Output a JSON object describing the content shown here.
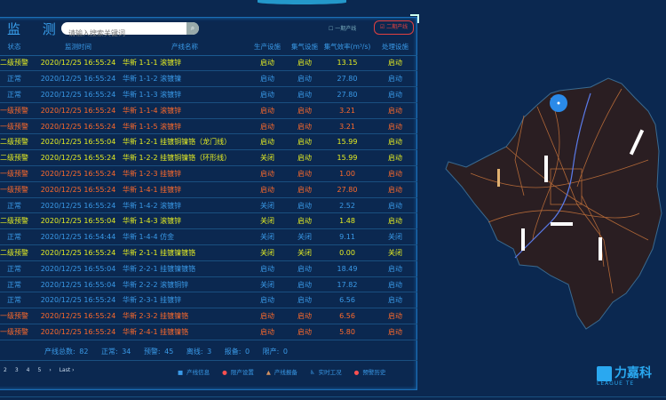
{
  "header": {
    "title": "监 测",
    "search_placeholder": "请输入搜索关键词",
    "checkbox_1": "一期产线",
    "checkbox_2": "二期产线"
  },
  "columns": [
    "状态",
    "监测时间",
    "产线名称",
    "生产设施",
    "集气设施",
    "集气效率(m³/s)",
    "处理设施"
  ],
  "rows": [
    {
      "level": "y",
      "status": "二级预警",
      "time": "2020/12/25 16:55:24",
      "name": "华新 1-1-1 滚镀锌",
      "prod": "启动",
      "gas": "启动",
      "eff": "13.15",
      "proc": "启动"
    },
    {
      "level": "n",
      "status": "正常",
      "time": "2020/12/25 16:55:24",
      "name": "华新 1-1-2 滚镀镍",
      "prod": "启动",
      "gas": "启动",
      "eff": "27.80",
      "proc": "启动"
    },
    {
      "level": "n",
      "status": "正常",
      "time": "2020/12/25 16:55:24",
      "name": "华新 1-1-3 滚镀锌",
      "prod": "启动",
      "gas": "启动",
      "eff": "27.80",
      "proc": "启动"
    },
    {
      "level": "o",
      "status": "一级预警",
      "time": "2020/12/25 16:55:24",
      "name": "华新 1-1-4 滚镀锌",
      "prod": "启动",
      "gas": "启动",
      "eff": "3.21",
      "proc": "启动"
    },
    {
      "level": "o",
      "status": "一级预警",
      "time": "2020/12/25 16:55:24",
      "name": "华新 1-1-5 滚镀锌",
      "prod": "启动",
      "gas": "启动",
      "eff": "3.21",
      "proc": "启动"
    },
    {
      "level": "y",
      "status": "二级预警",
      "time": "2020/12/25 16:55:04",
      "name": "华新 1-2-1 挂镀铜镍铬（龙门线）",
      "prod": "启动",
      "gas": "启动",
      "eff": "15.99",
      "proc": "启动"
    },
    {
      "level": "y",
      "status": "二级预警",
      "time": "2020/12/25 16:55:24",
      "name": "华新 1-2-2 挂镀铜镍铬（环形线）",
      "prod": "关闭",
      "gas": "启动",
      "eff": "15.99",
      "proc": "启动"
    },
    {
      "level": "o",
      "status": "一级预警",
      "time": "2020/12/25 16:55:24",
      "name": "华新 1-2-3 挂镀锌",
      "prod": "启动",
      "gas": "启动",
      "eff": "1.00",
      "proc": "启动"
    },
    {
      "level": "o",
      "status": "一级预警",
      "time": "2020/12/25 16:55:24",
      "name": "华新 1-4-1 挂镀锌",
      "prod": "启动",
      "gas": "启动",
      "eff": "27.80",
      "proc": "启动"
    },
    {
      "level": "n",
      "status": "正常",
      "time": "2020/12/25 16:55:24",
      "name": "华新 1-4-2 滚镀锌",
      "prod": "关闭",
      "gas": "启动",
      "eff": "2.52",
      "proc": "启动"
    },
    {
      "level": "y",
      "status": "二级预警",
      "time": "2020/12/25 16:55:04",
      "name": "华新 1-4-3 滚镀锌",
      "prod": "关闭",
      "gas": "启动",
      "eff": "1.48",
      "proc": "启动"
    },
    {
      "level": "n",
      "status": "正常",
      "time": "2020/12/25 16:54:44",
      "name": "华新 1-4-4 仿金",
      "prod": "关闭",
      "gas": "关闭",
      "eff": "9.11",
      "proc": "关闭"
    },
    {
      "level": "y",
      "status": "二级预警",
      "time": "2020/12/25 16:55:24",
      "name": "华新 2-1-1 挂镀镍镀铬",
      "prod": "关闭",
      "gas": "关闭",
      "eff": "0.00",
      "proc": "关闭"
    },
    {
      "level": "n",
      "status": "正常",
      "time": "2020/12/25 16:55:04",
      "name": "华新 2-2-1 挂镀镍镀铬",
      "prod": "启动",
      "gas": "启动",
      "eff": "18.49",
      "proc": "启动"
    },
    {
      "level": "n",
      "status": "正常",
      "time": "2020/12/25 16:55:04",
      "name": "华新 2-2-2 滚镀铜锌",
      "prod": "关闭",
      "gas": "启动",
      "eff": "17.82",
      "proc": "启动"
    },
    {
      "level": "n",
      "status": "正常",
      "time": "2020/12/25 16:55:24",
      "name": "华新 2-3-1 挂镀锌",
      "prod": "启动",
      "gas": "启动",
      "eff": "6.56",
      "proc": "启动"
    },
    {
      "level": "o",
      "status": "一级预警",
      "time": "2020/12/25 16:55:24",
      "name": "华新 2-3-2 挂镀镍铬",
      "prod": "启动",
      "gas": "启动",
      "eff": "6.56",
      "proc": "启动"
    },
    {
      "level": "o",
      "status": "一级预警",
      "time": "2020/12/25 16:55:24",
      "name": "华新 2-4-1 挂镀镍铬",
      "prod": "启动",
      "gas": "启动",
      "eff": "5.80",
      "proc": "启动"
    }
  ],
  "summary": {
    "total": "产线总数: 82",
    "normal": "正常: 34",
    "warning": "预警: 45",
    "offline": "离线: 3",
    "maintenance": "报备: 0",
    "stopped": "限产: 0"
  },
  "pager": [
    "2",
    "3",
    "4",
    "5",
    "›",
    "Last ›"
  ],
  "legend": [
    {
      "icon": "square",
      "label": "产线信息",
      "color": "#3a9ae8"
    },
    {
      "icon": "circle",
      "label": "限产设置",
      "color": "#ff5050"
    },
    {
      "icon": "triangle",
      "label": "产线报备",
      "color": "#d09060"
    },
    {
      "icon": "person",
      "label": "实时工况",
      "color": "#3a9ae8"
    },
    {
      "icon": "dot",
      "label": "预警历史",
      "color": "#ff5050"
    }
  ],
  "logo": {
    "cn": "力嘉科",
    "en": "LEAGUE TE"
  },
  "colors": {
    "yellow": "#e6ee22",
    "orange": "#ff6a2a",
    "blue": "#3a9ae8",
    "background": "#0b2850"
  }
}
